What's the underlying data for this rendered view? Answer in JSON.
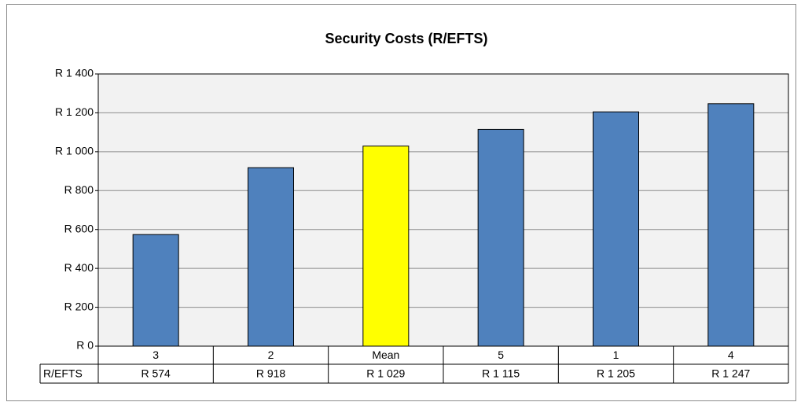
{
  "chart_data": {
    "type": "bar",
    "title": "Security Costs (R/EFTS)",
    "categories": [
      "3",
      "2",
      "Mean",
      "5",
      "1",
      "4"
    ],
    "series": [
      {
        "name": "R/EFTS",
        "values": [
          574,
          918,
          1029,
          1115,
          1205,
          1247
        ],
        "value_labels": [
          "R 574",
          "R 918",
          "R 1 029",
          "R 1 115",
          "R 1 205",
          "R 1 247"
        ],
        "colors": [
          "#4f81bd",
          "#4f81bd",
          "#ffff00",
          "#4f81bd",
          "#4f81bd",
          "#4f81bd"
        ]
      }
    ],
    "ylim": [
      0,
      1400
    ],
    "yticks": [
      {
        "value": 0,
        "label": "R 0"
      },
      {
        "value": 200,
        "label": "R 200"
      },
      {
        "value": 400,
        "label": "R 400"
      },
      {
        "value": 600,
        "label": "R 600"
      },
      {
        "value": 800,
        "label": "R 800"
      },
      {
        "value": 1000,
        "label": "R 1 000"
      },
      {
        "value": 1200,
        "label": "R 1 200"
      },
      {
        "value": 1400,
        "label": "R 1 400"
      }
    ],
    "grid": true
  }
}
